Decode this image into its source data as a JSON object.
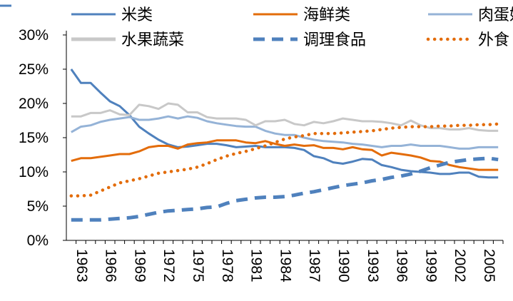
{
  "chart_data": {
    "type": "line",
    "title": "",
    "xlabel": "",
    "ylabel": "",
    "ylim": [
      0,
      30
    ],
    "y_ticks": [
      "0%",
      "5%",
      "10%",
      "15%",
      "20%",
      "25%",
      "30%"
    ],
    "x_tick_labels": [
      "1963",
      "1966",
      "1969",
      "1972",
      "1975",
      "1978",
      "1981",
      "1984",
      "1987",
      "1990",
      "1993",
      "1996",
      "1999",
      "2002",
      "2005"
    ],
    "grid": false,
    "legend_position": "top",
    "x": [
      1963,
      1964,
      1965,
      1966,
      1967,
      1968,
      1969,
      1970,
      1971,
      1972,
      1973,
      1974,
      1975,
      1976,
      1977,
      1978,
      1979,
      1980,
      1981,
      1982,
      1983,
      1984,
      1985,
      1986,
      1987,
      1988,
      1989,
      1990,
      1991,
      1992,
      1993,
      1994,
      1995,
      1996,
      1997,
      1998,
      1999,
      2000,
      2001,
      2002,
      2003,
      2004,
      2005,
      2006,
      2007
    ],
    "series": [
      {
        "name": "米类",
        "color": "#4f81bd",
        "dash": "solid",
        "values": [
          25.0,
          23.0,
          23.0,
          21.6,
          20.3,
          19.6,
          18.3,
          16.6,
          15.6,
          14.7,
          14.0,
          13.6,
          13.7,
          13.9,
          14.1,
          14.1,
          13.9,
          13.6,
          13.7,
          13.8,
          13.6,
          13.6,
          13.6,
          13.5,
          13.2,
          12.3,
          12.0,
          11.4,
          11.2,
          11.5,
          11.9,
          11.8,
          11.0,
          10.7,
          10.3,
          10.1,
          10.0,
          9.9,
          9.7,
          9.7,
          9.9,
          9.9,
          9.3,
          9.2,
          9.2
        ]
      },
      {
        "name": "海鲜类",
        "color": "#e36c0a",
        "dash": "solid",
        "values": [
          11.6,
          12.0,
          12.0,
          12.2,
          12.4,
          12.6,
          12.6,
          13.0,
          13.6,
          13.8,
          13.8,
          13.4,
          14.0,
          14.2,
          14.3,
          14.6,
          14.6,
          14.6,
          14.3,
          14.2,
          14.5,
          14.1,
          13.8,
          14.0,
          13.8,
          13.9,
          13.5,
          13.5,
          13.3,
          13.6,
          13.3,
          13.2,
          12.4,
          12.8,
          12.6,
          12.4,
          12.1,
          11.6,
          11.5,
          11.0,
          10.7,
          10.5,
          10.3,
          10.3,
          10.3
        ]
      },
      {
        "name": "肉蛋奶",
        "color": "#95b3d7",
        "dash": "solid",
        "values": [
          15.8,
          16.6,
          16.8,
          17.3,
          17.6,
          17.8,
          18.0,
          17.6,
          17.6,
          17.8,
          18.1,
          17.8,
          18.1,
          17.9,
          17.4,
          17.1,
          16.9,
          16.7,
          16.6,
          16.6,
          16.0,
          15.6,
          15.4,
          15.4,
          15.0,
          14.7,
          14.5,
          14.4,
          14.3,
          14.1,
          14.0,
          13.8,
          13.6,
          13.8,
          13.8,
          14.0,
          13.8,
          13.8,
          13.8,
          13.6,
          13.4,
          13.4,
          13.6,
          13.6,
          13.6
        ]
      },
      {
        "name": "水果蔬菜",
        "color": "#c8c8c8",
        "dash": "solid",
        "values": [
          18.1,
          18.1,
          18.6,
          18.6,
          19.0,
          18.4,
          18.3,
          19.8,
          19.6,
          19.2,
          20.0,
          19.8,
          18.7,
          18.7,
          18.0,
          17.8,
          17.8,
          17.8,
          17.6,
          16.8,
          17.4,
          17.4,
          17.6,
          17.0,
          16.8,
          17.3,
          17.1,
          17.4,
          17.8,
          17.6,
          17.4,
          17.4,
          17.3,
          17.1,
          16.8,
          17.5,
          16.8,
          16.4,
          16.4,
          16.2,
          16.2,
          16.4,
          16.1,
          16.0,
          16.0
        ]
      },
      {
        "name": "调理食品",
        "color": "#4f81bd",
        "dash": "dashed",
        "values": [
          3.0,
          3.0,
          3.0,
          3.0,
          3.1,
          3.2,
          3.3,
          3.5,
          3.8,
          4.1,
          4.3,
          4.4,
          4.5,
          4.6,
          4.8,
          4.9,
          5.4,
          5.8,
          6.0,
          6.2,
          6.3,
          6.3,
          6.4,
          6.6,
          6.9,
          7.1,
          7.4,
          7.7,
          8.0,
          8.2,
          8.4,
          8.7,
          8.9,
          9.2,
          9.4,
          9.7,
          10.1,
          10.6,
          11.0,
          11.4,
          11.6,
          11.8,
          11.9,
          12.0,
          11.8
        ]
      },
      {
        "name": "外食",
        "color": "#e36c0a",
        "dash": "dotted",
        "values": [
          6.5,
          6.5,
          6.6,
          7.2,
          7.8,
          8.4,
          8.7,
          9.0,
          9.4,
          9.8,
          10.0,
          10.2,
          10.4,
          10.7,
          11.2,
          11.8,
          12.3,
          12.7,
          13.0,
          13.4,
          13.8,
          14.3,
          14.8,
          15.1,
          15.3,
          15.6,
          15.6,
          15.6,
          15.7,
          15.8,
          15.9,
          16.0,
          16.2,
          16.4,
          16.5,
          16.6,
          16.6,
          16.6,
          16.7,
          16.7,
          16.8,
          16.8,
          16.9,
          16.9,
          17.0
        ]
      }
    ]
  }
}
